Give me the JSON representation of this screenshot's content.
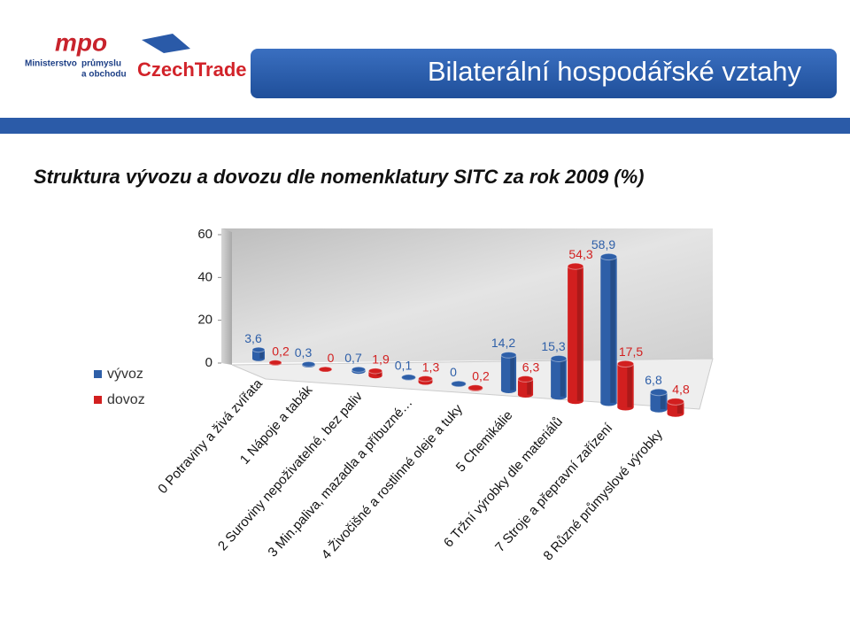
{
  "header": {
    "logo_mpo": "mpo",
    "logo_mpo_lines": [
      "Ministerstvo",
      "průmyslu",
      "a obchodu"
    ],
    "logo_czechtrade": "CzechTrade",
    "title": "Bilaterální hospodářské vztahy"
  },
  "chart_data": {
    "type": "bar",
    "title": "Struktura vývozu a dovozu dle nomenklatury SITC za rok 2009 (%)",
    "categories": [
      "0 Potraviny a živá zvířata",
      "1 Nápoje a tabák",
      "2 Suroviny nepoživatelné, bez paliv",
      "3 Min.paliva, mazadla a příbuzné…",
      "4 Živočišné a rostlinné oleje a tuky",
      "5 Chemikálie",
      "6 Tržní výrobky dle materiálů",
      "7 Stroje a přepravní zařízení",
      "8 Různé průmyslové výrobky"
    ],
    "series": [
      {
        "name": "vývoz",
        "color": "#2e5fa8",
        "values": [
          3.6,
          0.3,
          0.7,
          0.1,
          0,
          14.2,
          15.3,
          58.9,
          6.8
        ],
        "value_labels": [
          "3,6",
          "0,3",
          "0,7",
          "0,1",
          "0",
          "14,2",
          "15,3",
          "58,9",
          "6,8"
        ]
      },
      {
        "name": "dovoz",
        "color": "#d21f1f",
        "values": [
          0.2,
          0,
          1.9,
          1.3,
          0.2,
          6.3,
          54.3,
          17.5,
          4.8
        ],
        "value_labels": [
          "0,2",
          "0",
          "1,9",
          "1,3",
          "0,2",
          "6,3",
          "54,3",
          "17,5",
          "4,8"
        ]
      }
    ],
    "ylim": [
      0,
      60
    ],
    "yticks": [
      0,
      20,
      40,
      60
    ],
    "legend": "left"
  }
}
